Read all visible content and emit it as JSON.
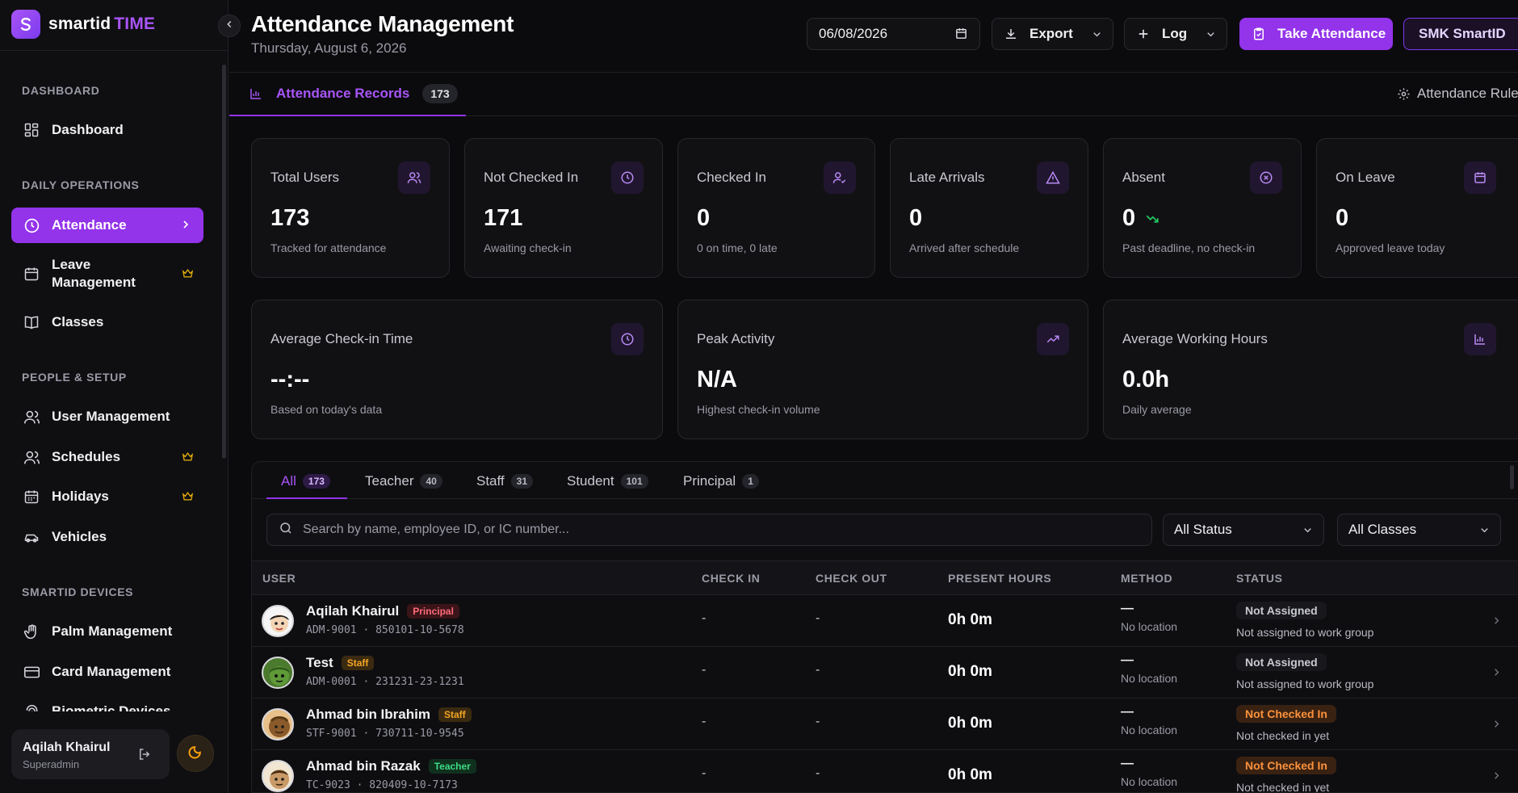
{
  "brand": {
    "name": "smartid",
    "accent": "TIME",
    "color": "#9333ea"
  },
  "sidebar": {
    "sections": [
      {
        "title": "DASHBOARD"
      },
      {
        "title": "DAILY OPERATIONS"
      },
      {
        "title": "PEOPLE & SETUP"
      },
      {
        "title": "SMARTID DEVICES"
      }
    ],
    "items": [
      {
        "label": "Dashboard",
        "icon": "grid-icon"
      },
      {
        "label": "Attendance",
        "icon": "clock-icon",
        "active": true
      },
      {
        "label": "Leave Management",
        "icon": "calendar-icon",
        "premium": true
      },
      {
        "label": "Classes",
        "icon": "book-icon"
      },
      {
        "label": "User Management",
        "icon": "users-icon"
      },
      {
        "label": "Schedules",
        "icon": "users-icon",
        "premium": true
      },
      {
        "label": "Holidays",
        "icon": "calendar-grid-icon",
        "premium": true
      },
      {
        "label": "Vehicles",
        "icon": "car-icon"
      },
      {
        "label": "Palm Management",
        "icon": "palm-icon"
      },
      {
        "label": "Card Management",
        "icon": "card-icon"
      },
      {
        "label": "Biometric Devices",
        "icon": "fingerprint-icon"
      }
    ],
    "user": {
      "name": "Aqilah Khairul",
      "role": "Superadmin"
    }
  },
  "header": {
    "title": "Attendance Management",
    "date_text": "Thursday, August 6, 2026",
    "date_value": "06/08/2026",
    "export_label": "Export",
    "log_label": "Log",
    "take_attendance_label": "Take Attendance",
    "org_label": "SMK SmartID"
  },
  "tabs": {
    "records_label": "Attendance Records",
    "records_count": "173",
    "rules_label": "Attendance Rules"
  },
  "stats": [
    {
      "label": "Total Users",
      "value": "173",
      "sub": "Tracked for attendance",
      "icon": "users-icon"
    },
    {
      "label": "Not Checked In",
      "value": "171",
      "sub": "Awaiting check-in",
      "icon": "clock-icon"
    },
    {
      "label": "Checked In",
      "value": "0",
      "sub": "0 on time, 0 late",
      "icon": "user-check-icon"
    },
    {
      "label": "Late Arrivals",
      "value": "0",
      "sub": "Arrived after schedule",
      "icon": "warning-icon"
    },
    {
      "label": "Absent",
      "value": "0",
      "sub": "Past deadline, no check-in",
      "icon": "x-circle-icon"
    },
    {
      "label": "On Leave",
      "value": "0",
      "sub": "Approved leave today",
      "icon": "calendar-icon"
    }
  ],
  "metrics": [
    {
      "label": "Average Check-in Time",
      "value": "--:--",
      "sub": "Based on today's data",
      "icon": "clock-icon"
    },
    {
      "label": "Peak Activity",
      "value": "N/A",
      "sub": "Highest check-in volume",
      "icon": "trending-up-icon"
    },
    {
      "label": "Average Working Hours",
      "value": "0.0h",
      "sub": "Daily average",
      "icon": "bar-chart-icon"
    }
  ],
  "filters": {
    "tabs": [
      {
        "label": "All",
        "count": "173"
      },
      {
        "label": "Teacher",
        "count": "40"
      },
      {
        "label": "Staff",
        "count": "31"
      },
      {
        "label": "Student",
        "count": "101"
      },
      {
        "label": "Principal",
        "count": "1"
      }
    ],
    "search_placeholder": "Search by name, employee ID, or IC number...",
    "status_value": "All Status",
    "classes_value": "All Classes"
  },
  "table": {
    "columns": [
      "USER",
      "CHECK IN",
      "CHECK OUT",
      "PRESENT HOURS",
      "METHOD",
      "STATUS"
    ],
    "rows": [
      {
        "name": "Aqilah Khairul",
        "role": "Principal",
        "id": "ADM-9001 · 850101-10-5678",
        "check_in": "-",
        "check_out": "-",
        "hours": "0h 0m",
        "method": "—",
        "location": "No location",
        "status": "Not Assigned",
        "status_sub": "Not assigned to work group"
      },
      {
        "name": "Test",
        "role": "Staff",
        "id": "ADM-0001 · 231231-23-1231",
        "check_in": "-",
        "check_out": "-",
        "hours": "0h 0m",
        "method": "—",
        "location": "No location",
        "status": "Not Assigned",
        "status_sub": "Not assigned to work group"
      },
      {
        "name": "Ahmad bin Ibrahim",
        "role": "Staff",
        "id": "STF-9001 · 730711-10-9545",
        "check_in": "-",
        "check_out": "-",
        "hours": "0h 0m",
        "method": "—",
        "location": "No location",
        "status": "Not Checked In",
        "status_sub": "Not checked in yet"
      },
      {
        "name": "Ahmad bin Razak",
        "role": "Teacher",
        "id": "TC-9023 · 820409-10-7173",
        "check_in": "-",
        "check_out": "-",
        "hours": "0h 0m",
        "method": "—",
        "location": "No location",
        "status": "Not Checked In",
        "status_sub": "Not checked in yet"
      }
    ]
  }
}
